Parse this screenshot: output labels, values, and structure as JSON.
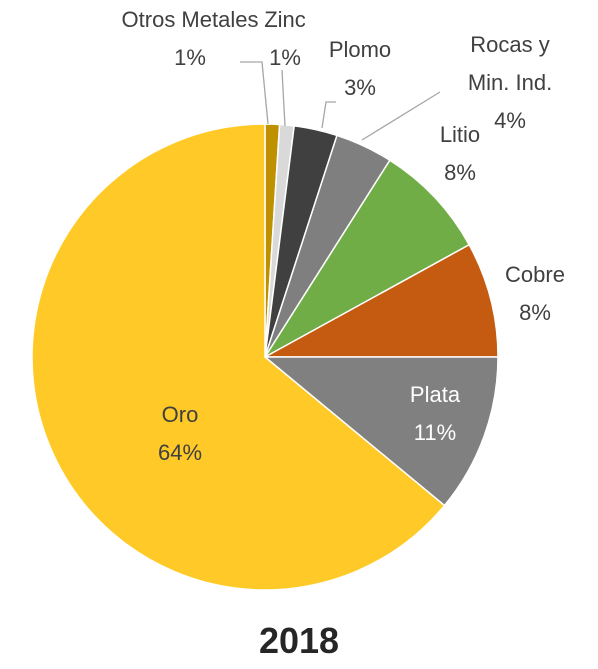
{
  "chart_data": {
    "type": "pie",
    "title": "2018",
    "categories": [
      "Otros Metales",
      "Zinc",
      "Plomo",
      "Rocas y Min. Ind.",
      "Litio",
      "Cobre",
      "Plata",
      "Oro"
    ],
    "values": [
      1,
      1,
      3,
      4,
      8,
      8,
      11,
      64
    ],
    "value_labels": [
      "1%",
      "1%",
      "3%",
      "4%",
      "8%",
      "8%",
      "11%",
      "64%"
    ],
    "colors": [
      "#bf9000",
      "#d9d9d9",
      "#404040",
      "#7f7f7f",
      "#70ad47",
      "#c55a11",
      "#808080",
      "#ffca28"
    ]
  }
}
